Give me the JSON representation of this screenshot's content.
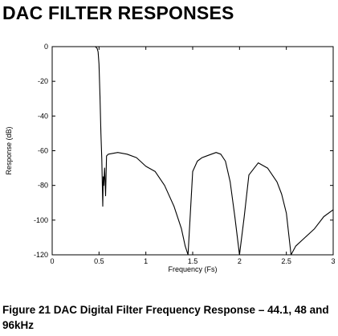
{
  "heading": "DAC FILTER RESPONSES",
  "caption": "Figure 21  DAC Digital Filter Frequency Response – 44.1, 48 and 96kHz",
  "chart_data": {
    "type": "line",
    "title": "",
    "xlabel": "Frequency (Fs)",
    "ylabel": "Response (dB)",
    "xlim": [
      0,
      3
    ],
    "ylim": [
      -120,
      0
    ],
    "x_ticks": [
      0,
      0.5,
      1,
      1.5,
      2,
      2.5,
      3
    ],
    "x_tick_labels": [
      "0",
      "0.5",
      "1",
      "1.5",
      "2",
      "2.5",
      "3"
    ],
    "y_ticks": [
      0,
      -20,
      -40,
      -60,
      -80,
      -100,
      -120
    ],
    "y_tick_labels": [
      "0",
      "-20",
      "-40",
      "-60",
      "-80",
      "-100",
      "-120"
    ],
    "grid": false,
    "line_color": "#000000",
    "series": [
      {
        "x": [
          0,
          0.1,
          0.2,
          0.3,
          0.4,
          0.46,
          0.48,
          0.49,
          0.5,
          0.51,
          0.52,
          0.53,
          0.54,
          0.545,
          0.55,
          0.56,
          0.57,
          0.58,
          0.6,
          0.7,
          0.8,
          0.9,
          1.0,
          1.1,
          1.2,
          1.3,
          1.38,
          1.42,
          1.45,
          1.5,
          1.55,
          1.6,
          1.7,
          1.75,
          1.8,
          1.85,
          1.9,
          1.95,
          2.0,
          2.05,
          2.1,
          2.2,
          2.3,
          2.4,
          2.45,
          2.5,
          2.55,
          2.6,
          2.7,
          2.8,
          2.9,
          3.0
        ],
        "y": [
          0,
          0,
          0,
          0,
          0,
          0,
          -1,
          -3,
          -10,
          -28,
          -50,
          -65,
          -92,
          -75,
          -80,
          -70,
          -86,
          -63,
          -62,
          -61,
          -62,
          -64,
          -69,
          -72,
          -80,
          -92,
          -105,
          -115,
          -120,
          -72,
          -66,
          -64,
          -62,
          -61,
          -62,
          -66,
          -78,
          -98,
          -120,
          -98,
          -74,
          -67,
          -70,
          -78,
          -85,
          -96,
          -120,
          -115,
          -110,
          -105,
          -98,
          -94
        ]
      }
    ]
  }
}
